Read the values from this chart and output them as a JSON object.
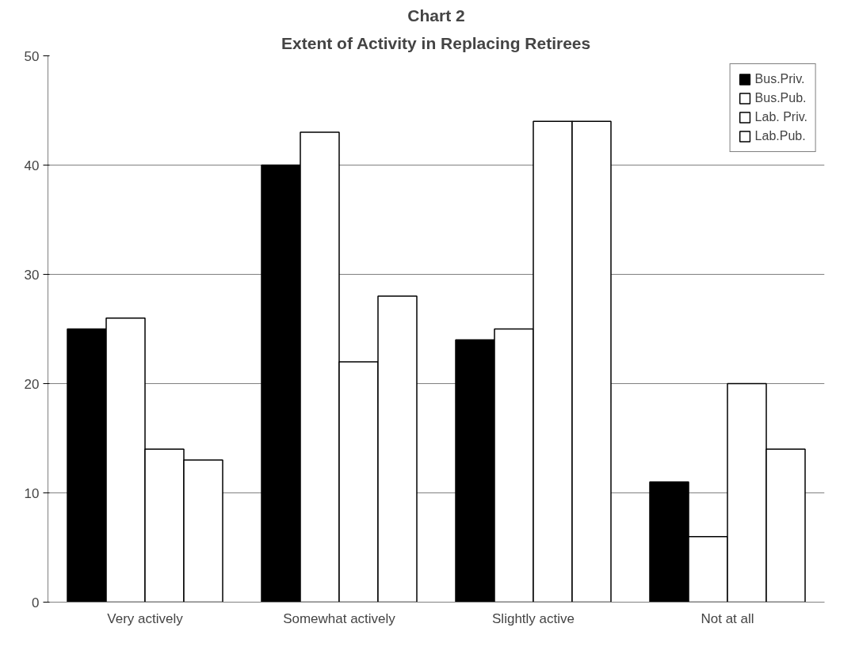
{
  "chart_data": {
    "type": "bar",
    "title": "Chart 2",
    "subtitle": "Extent of Activity in Replacing Retirees",
    "categories": [
      "Very actively",
      "Somewhat actively",
      "Slightly active",
      "Not at all"
    ],
    "series": [
      {
        "name": "Bus.Priv.",
        "color": "#000000",
        "values": [
          25,
          40,
          24,
          11
        ]
      },
      {
        "name": "Bus.Pub.",
        "color": "#ffffff",
        "values": [
          26,
          43,
          25,
          6
        ]
      },
      {
        "name": "Lab. Priv.",
        "color": "#ffffff",
        "values": [
          14,
          22,
          44,
          20
        ]
      },
      {
        "name": "Lab.Pub.",
        "color": "#ffffff",
        "values": [
          13,
          28,
          44,
          14
        ]
      }
    ],
    "ylim": [
      0,
      50
    ],
    "yticks": [
      0,
      10,
      20,
      30,
      40,
      50
    ],
    "grid": "y",
    "legend": "top right"
  }
}
